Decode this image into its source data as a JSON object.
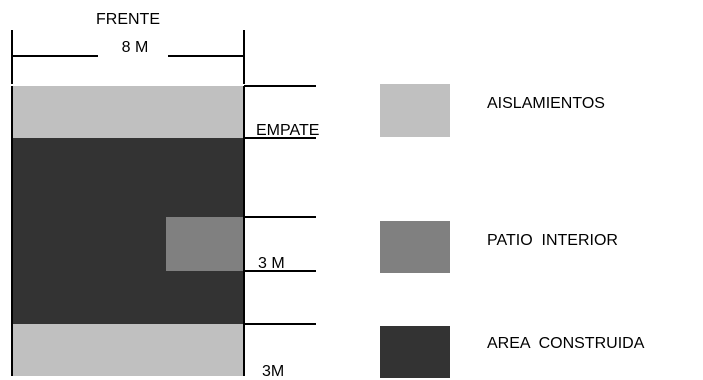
{
  "diagram": {
    "frente_label": "FRENTE",
    "width_label": "8 M",
    "empate_label": "EMPATE",
    "patio_dim_label": "3 M",
    "rear_dim_label": "3M"
  },
  "legend": {
    "items": [
      {
        "label": "AISLAMIENTOS",
        "color": "#c0c0c0"
      },
      {
        "label": "PATIO  INTERIOR",
        "color": "#808080"
      },
      {
        "label": "AREA  CONSTRUIDA",
        "color": "#333333"
      }
    ]
  },
  "colors": {
    "aislamientos": "#c0c0c0",
    "patio_interior": "#808080",
    "area_construida": "#333333",
    "lines": "#000000"
  }
}
